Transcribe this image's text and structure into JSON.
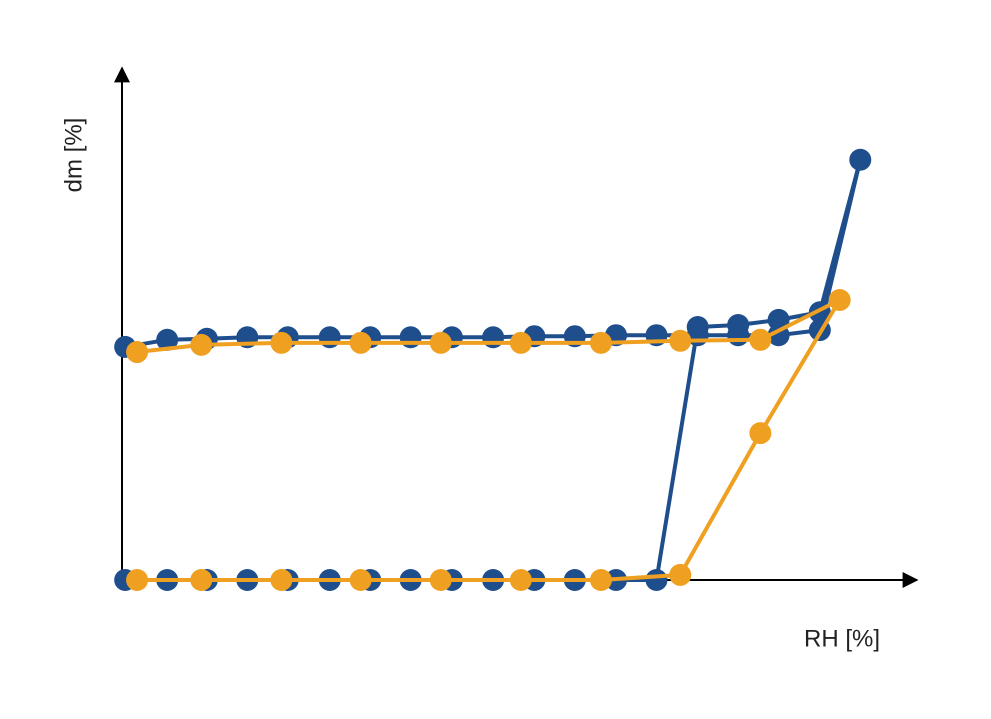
{
  "chart_data": {
    "type": "line",
    "x_label": "RH [%]",
    "y_label": "dm [%]",
    "xlim": [
      0,
      100
    ],
    "ylim": [
      0,
      100
    ],
    "series": [
      {
        "color": "#1f4e8c",
        "x": [
          0.4,
          5.7,
          10.7,
          15.8,
          20.9,
          26.2,
          31.3,
          36.4,
          41.6,
          46.8,
          52.0,
          57.1,
          62.3,
          67.4,
          72.6,
          77.7,
          82.8,
          88.0,
          93.1,
          88.0,
          82.8,
          77.7,
          72.6,
          67.4,
          62.3,
          57.1,
          52.0,
          46.8,
          41.6,
          36.4,
          31.3,
          26.2,
          20.9,
          15.8,
          10.7,
          5.7,
          0.4
        ],
        "values": [
          0,
          0,
          0,
          0,
          0,
          0,
          0,
          0,
          0,
          0,
          0,
          0,
          0,
          0,
          49.6,
          50,
          51,
          52.5,
          82.4,
          49.0,
          48.0,
          48.0,
          48.0,
          48.0,
          48.0,
          47.8,
          47.8,
          47.6,
          47.6,
          47.6,
          47.6,
          47.6,
          47.6,
          47.6,
          47.3,
          47.1,
          45.7
        ]
      },
      {
        "color": "#f0a020",
        "x": [
          1.9,
          10.0,
          20.1,
          30.1,
          40.2,
          50.3,
          60.4,
          70.4,
          80.5,
          90.5,
          80.5,
          70.4,
          60.4,
          50.3,
          40.2,
          30.1,
          20.1,
          10.0,
          1.9
        ],
        "values": [
          0,
          0,
          0,
          0,
          0,
          0,
          0,
          1.0,
          28.8,
          54.9,
          47.1,
          46.9,
          46.5,
          46.5,
          46.5,
          46.5,
          46.5,
          46.1,
          44.7
        ]
      }
    ]
  }
}
